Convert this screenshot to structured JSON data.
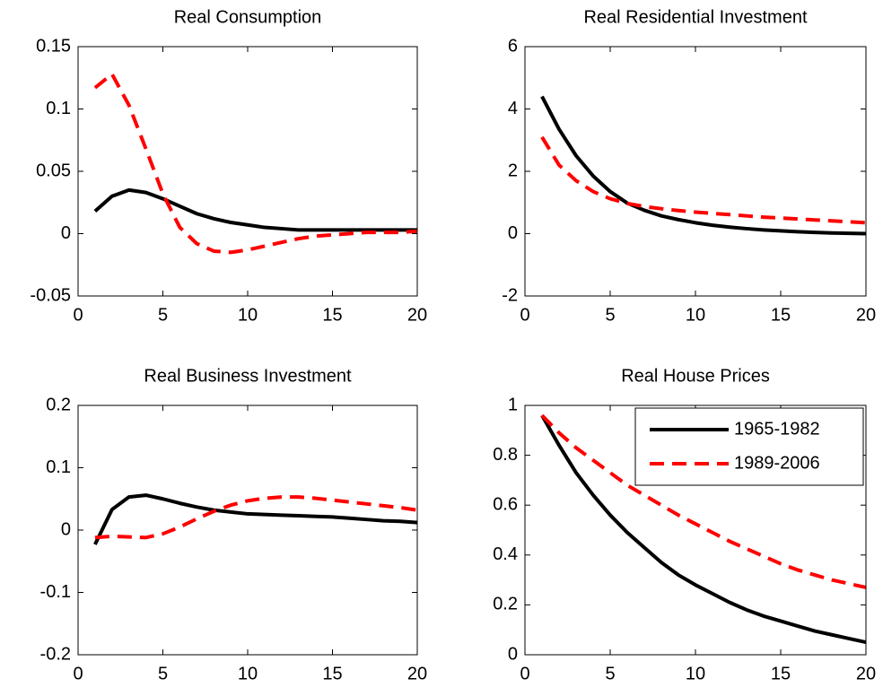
{
  "chart_data": [
    {
      "type": "line",
      "title": "Real Consumption",
      "x": [
        1,
        2,
        3,
        4,
        5,
        6,
        7,
        8,
        9,
        10,
        11,
        12,
        13,
        14,
        15,
        16,
        17,
        18,
        19,
        20
      ],
      "xlim": [
        0,
        20
      ],
      "xticks": [
        0,
        5,
        10,
        15,
        20
      ],
      "ylim": [
        -0.05,
        0.15
      ],
      "yticks": [
        -0.05,
        0,
        0.05,
        0.1,
        0.15
      ],
      "series": [
        {
          "color": "#000000",
          "linestyle": "solid",
          "values": [
            0.018,
            0.03,
            0.035,
            0.033,
            0.028,
            0.022,
            0.016,
            0.012,
            0.009,
            0.007,
            0.005,
            0.004,
            0.003,
            0.003,
            0.003,
            0.003,
            0.003,
            0.003,
            0.003,
            0.003
          ]
        },
        {
          "color": "#ff0000",
          "linestyle": "dashed",
          "values": [
            0.117,
            0.128,
            0.103,
            0.068,
            0.032,
            0.005,
            -0.008,
            -0.014,
            -0.015,
            -0.013,
            -0.01,
            -0.007,
            -0.004,
            -0.002,
            -0.001,
            0.0,
            0.001,
            0.001,
            0.001,
            0.002
          ]
        }
      ]
    },
    {
      "type": "line",
      "title": "Real Residential Investment",
      "x": [
        1,
        2,
        3,
        4,
        5,
        6,
        7,
        8,
        9,
        10,
        11,
        12,
        13,
        14,
        15,
        16,
        17,
        18,
        19,
        20
      ],
      "xlim": [
        0,
        20
      ],
      "xticks": [
        0,
        5,
        10,
        15,
        20
      ],
      "ylim": [
        -2,
        6
      ],
      "yticks": [
        -2,
        0,
        2,
        4,
        6
      ],
      "series": [
        {
          "color": "#000000",
          "linestyle": "solid",
          "values": [
            4.4,
            3.35,
            2.5,
            1.85,
            1.35,
            0.98,
            0.75,
            0.57,
            0.45,
            0.35,
            0.27,
            0.21,
            0.16,
            0.12,
            0.09,
            0.06,
            0.04,
            0.02,
            0.01,
            0.0
          ]
        },
        {
          "color": "#ff0000",
          "linestyle": "dashed",
          "values": [
            3.1,
            2.2,
            1.7,
            1.35,
            1.12,
            0.97,
            0.87,
            0.8,
            0.74,
            0.69,
            0.65,
            0.61,
            0.57,
            0.53,
            0.5,
            0.47,
            0.44,
            0.41,
            0.38,
            0.35
          ]
        }
      ]
    },
    {
      "type": "line",
      "title": "Real Business Investment",
      "x": [
        1,
        2,
        3,
        4,
        5,
        6,
        7,
        8,
        9,
        10,
        11,
        12,
        13,
        14,
        15,
        16,
        17,
        18,
        19,
        20
      ],
      "xlim": [
        0,
        20
      ],
      "xticks": [
        0,
        5,
        10,
        15,
        20
      ],
      "ylim": [
        -0.2,
        0.2
      ],
      "yticks": [
        -0.2,
        -0.1,
        0,
        0.1,
        0.2
      ],
      "series": [
        {
          "color": "#000000",
          "linestyle": "solid",
          "values": [
            -0.023,
            0.033,
            0.053,
            0.056,
            0.05,
            0.043,
            0.037,
            0.032,
            0.029,
            0.026,
            0.025,
            0.024,
            0.023,
            0.022,
            0.021,
            0.019,
            0.017,
            0.015,
            0.014,
            0.012
          ]
        },
        {
          "color": "#ff0000",
          "linestyle": "dashed",
          "values": [
            -0.012,
            -0.01,
            -0.011,
            -0.012,
            -0.006,
            0.005,
            0.018,
            0.03,
            0.04,
            0.047,
            0.051,
            0.053,
            0.053,
            0.051,
            0.048,
            0.045,
            0.042,
            0.039,
            0.036,
            0.032
          ]
        }
      ]
    },
    {
      "type": "line",
      "title": "Real House Prices",
      "x": [
        1,
        2,
        3,
        4,
        5,
        6,
        7,
        8,
        9,
        10,
        11,
        12,
        13,
        14,
        15,
        16,
        17,
        18,
        19,
        20
      ],
      "xlim": [
        0,
        20
      ],
      "xticks": [
        0,
        5,
        10,
        15,
        20
      ],
      "ylim": [
        0,
        1
      ],
      "yticks": [
        0,
        0.2,
        0.4,
        0.6,
        0.8,
        1
      ],
      "legend": "upper right",
      "series": [
        {
          "name": "1965-1982",
          "color": "#000000",
          "linestyle": "solid",
          "values": [
            0.96,
            0.84,
            0.73,
            0.64,
            0.56,
            0.49,
            0.43,
            0.37,
            0.32,
            0.28,
            0.245,
            0.21,
            0.18,
            0.155,
            0.135,
            0.115,
            0.095,
            0.08,
            0.065,
            0.05
          ]
        },
        {
          "name": "1989-2006",
          "color": "#ff0000",
          "linestyle": "dashed",
          "values": [
            0.96,
            0.89,
            0.83,
            0.78,
            0.73,
            0.68,
            0.64,
            0.6,
            0.56,
            0.525,
            0.49,
            0.455,
            0.425,
            0.395,
            0.365,
            0.34,
            0.32,
            0.3,
            0.285,
            0.27
          ]
        }
      ]
    }
  ]
}
